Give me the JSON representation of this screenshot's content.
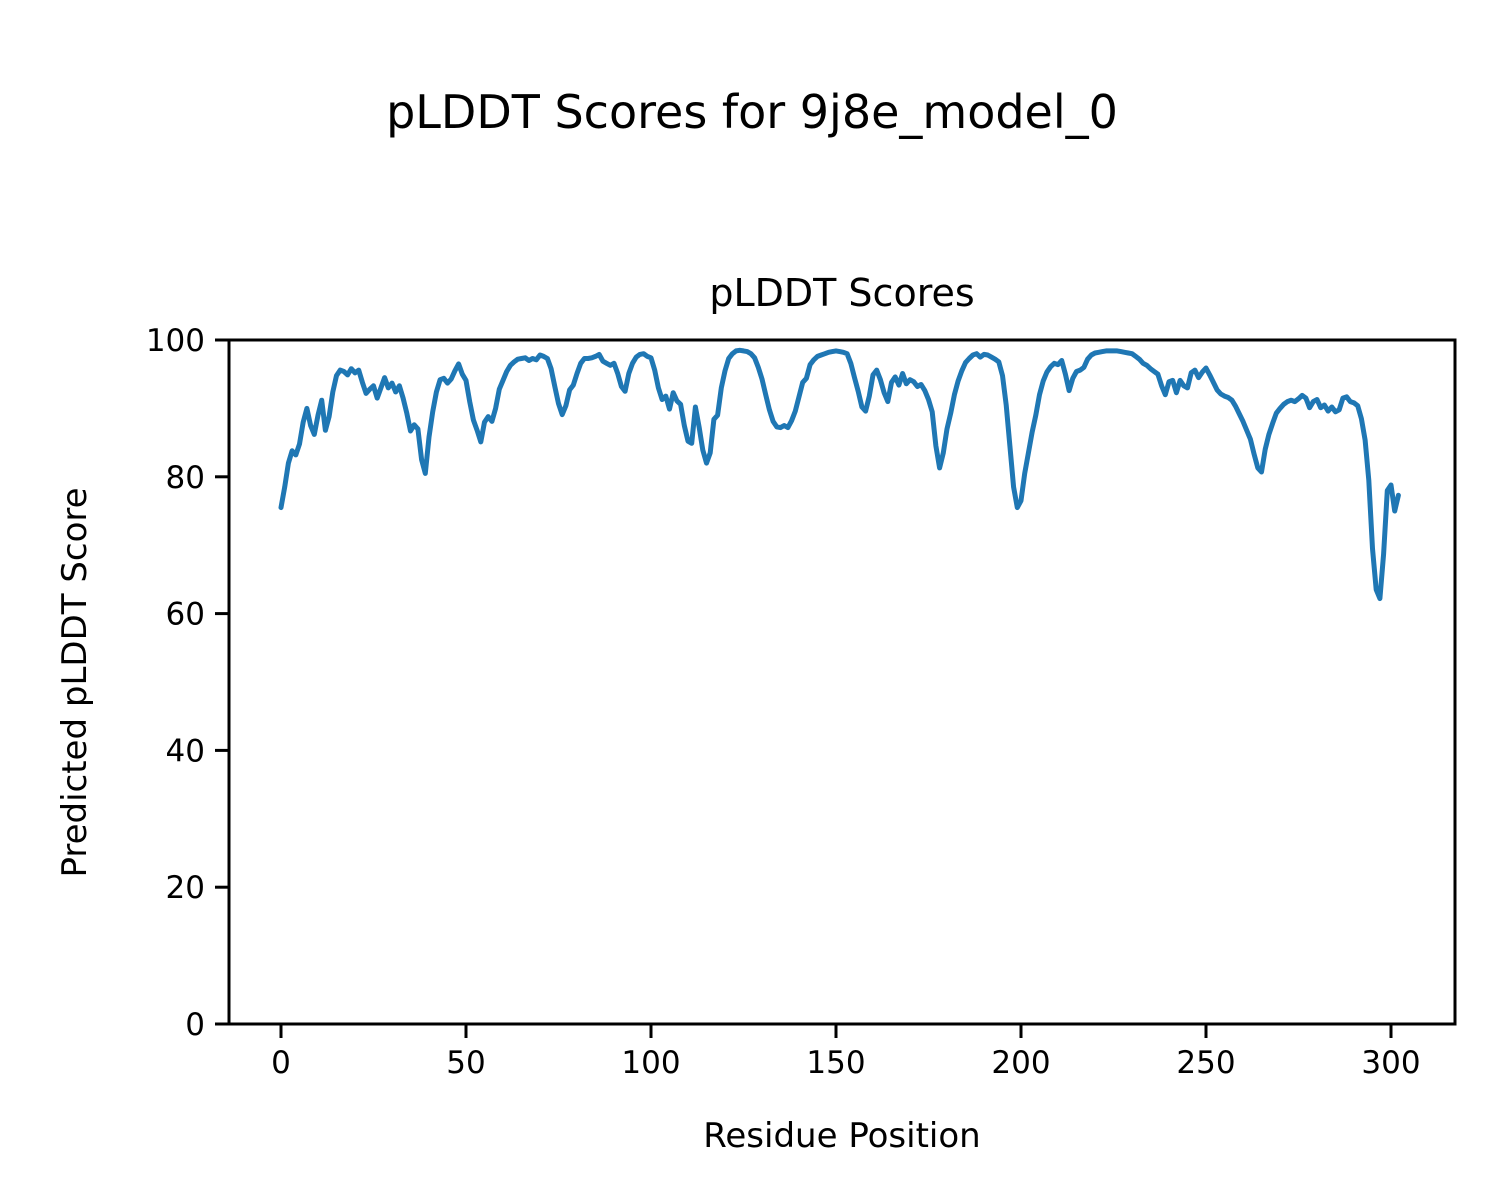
{
  "figure": {
    "suptitle": "pLDDT Scores for 9j8e_model_0",
    "background_color": "#ffffff"
  },
  "chart_data": {
    "type": "line",
    "title": "pLDDT Scores",
    "xlabel": "Residue Position",
    "ylabel": "Predicted pLDDT Score",
    "x_start": 0,
    "xticks": [
      0,
      50,
      100,
      150,
      200,
      250,
      300
    ],
    "yticks": [
      0,
      20,
      40,
      60,
      80,
      100
    ],
    "xlim": [
      -15.1,
      317.1
    ],
    "ylim": [
      0,
      100
    ],
    "grid": false,
    "legend": "none",
    "line_color": "#1f77b4",
    "series_name": "pLDDT",
    "values": [
      75.5,
      78.5,
      82,
      83.8,
      83.2,
      84.8,
      88,
      90,
      87.5,
      86.2,
      89,
      91.2,
      86.8,
      88.8,
      92.4,
      94.8,
      95.6,
      95.4,
      94.9,
      95.8,
      95.2,
      95.6,
      93.8,
      92.2,
      92.8,
      93.3,
      91.5,
      93,
      94.5,
      93,
      93.7,
      92.4,
      93.3,
      91.5,
      89.3,
      86.7,
      87.6,
      87,
      82.5,
      80.5,
      85.8,
      89.5,
      92.4,
      94.2,
      94.4,
      93.7,
      94.3,
      95.5,
      96.5,
      95,
      94.1,
      91,
      88.3,
      86.8,
      85.1,
      88,
      88.8,
      88.1,
      90,
      92.8,
      94.1,
      95.4,
      96.3,
      96.8,
      97.2,
      97.3,
      97.4,
      97,
      97.3,
      97.1,
      97.8,
      97.6,
      97.3,
      95.8,
      93.2,
      90.7,
      89.1,
      90.4,
      92.7,
      93.4,
      95.1,
      96.6,
      97.3,
      97.3,
      97.4,
      97.6,
      97.9,
      96.9,
      96.6,
      96.3,
      96.6,
      95.1,
      93.2,
      92.5,
      95.1,
      96.6,
      97.5,
      97.9,
      98,
      97.6,
      97.4,
      95.6,
      93,
      91.3,
      91.8,
      89.9,
      92.3,
      91.1,
      90.6,
      87.5,
      85.2,
      84.9,
      90.2,
      87.3,
      83.9,
      82,
      83.5,
      88.4,
      89,
      93,
      95.5,
      97.3,
      98,
      98.4,
      98.5,
      98.4,
      98.3,
      98,
      97.4,
      96,
      94.3,
      92,
      89.8,
      88.1,
      87.3,
      87.2,
      87.5,
      87.2,
      88.2,
      89.6,
      91.7,
      93.8,
      94.4,
      96.4,
      97.1,
      97.6,
      97.8,
      98,
      98.2,
      98.3,
      98.4,
      98.3,
      98.2,
      98,
      96.6,
      94.5,
      92.5,
      90.2,
      89.6,
      91.8,
      94.9,
      95.6,
      94.2,
      92.3,
      91,
      93.8,
      94.6,
      93.4,
      95.1,
      93.6,
      94.2,
      93.9,
      93.2,
      93.5,
      92.6,
      91.3,
      89.5,
      84.5,
      81.3,
      83.5,
      87,
      89.3,
      92,
      94,
      95.5,
      96.7,
      97.3,
      97.8,
      98,
      97.5,
      97.9,
      97.8,
      97.5,
      97.2,
      96.8,
      94.8,
      90.5,
      84.5,
      78.5,
      75.5,
      76.5,
      80.5,
      83.5,
      86.5,
      89,
      92,
      94,
      95.3,
      96.1,
      96.6,
      96.4,
      97,
      95,
      92.6,
      94.4,
      95.4,
      95.6,
      96,
      97.2,
      97.8,
      98.1,
      98.2,
      98.3,
      98.4,
      98.4,
      98.4,
      98.4,
      98.3,
      98.2,
      98.1,
      98,
      97.6,
      97.2,
      96.6,
      96.3,
      95.8,
      95.4,
      95,
      93.3,
      92,
      93.9,
      94.1,
      92.3,
      94.1,
      93.3,
      93,
      95.2,
      95.6,
      94.5,
      95.3,
      95.9,
      94.9,
      93.8,
      92.7,
      92.1,
      91.8,
      91.6,
      91.2,
      90.3,
      89.2,
      88.1,
      86.8,
      85.5,
      83.3,
      81.3,
      80.7,
      84,
      86.2,
      87.8,
      89.3,
      90,
      90.6,
      91,
      91.2,
      91,
      91.4,
      91.9,
      91.5,
      90.1,
      91,
      91.3,
      90.1,
      90.5,
      89.6,
      90.2,
      89.5,
      89.8,
      91.5,
      91.7,
      91,
      90.8,
      90.4,
      88.5,
      85.4,
      79.5,
      69.5,
      63.5,
      62.2,
      68.7,
      78,
      78.8,
      75,
      77.3
    ]
  }
}
